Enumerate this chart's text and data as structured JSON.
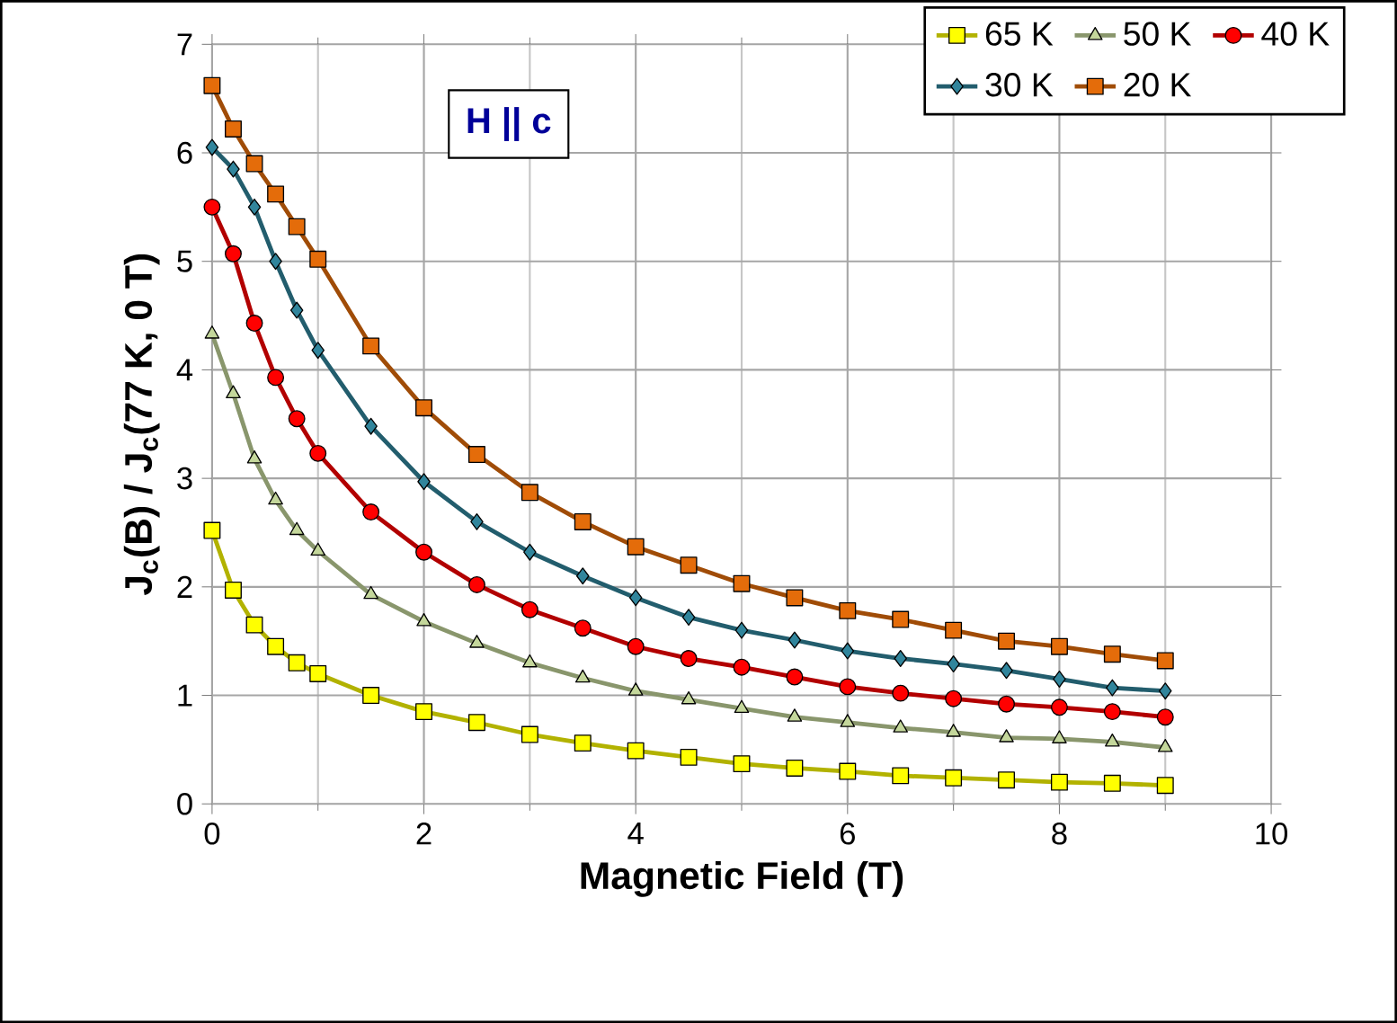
{
  "chart_data": {
    "type": "line",
    "xlabel": "Magnetic Field (T)",
    "ylabel": "J$_{c}$(B) / J$_{c}$(77 K, 0 T)",
    "annotations": [
      "H || c"
    ],
    "x": [
      0,
      0.2,
      0.4,
      0.6,
      0.8,
      1,
      1.5,
      2,
      2.5,
      3,
      3.5,
      4,
      4.5,
      5,
      5.5,
      6,
      6.5,
      7,
      7.5,
      8,
      8.5,
      9
    ],
    "series": [
      {
        "name": "65 K",
        "color": "#ffff00",
        "marker": "square",
        "values": [
          2.52,
          1.97,
          1.65,
          1.45,
          1.3,
          1.2,
          1.0,
          0.85,
          0.75,
          0.64,
          0.56,
          0.49,
          0.43,
          0.37,
          0.33,
          0.3,
          0.26,
          0.24,
          0.22,
          0.2,
          0.19,
          0.17
        ]
      },
      {
        "name": "50 K",
        "color": "#c4d79b",
        "marker": "triangle",
        "values": [
          4.33,
          3.78,
          3.18,
          2.8,
          2.52,
          2.33,
          1.93,
          1.68,
          1.48,
          1.3,
          1.16,
          1.04,
          0.96,
          0.88,
          0.8,
          0.75,
          0.7,
          0.66,
          0.61,
          0.6,
          0.57,
          0.52
        ]
      },
      {
        "name": "40 K",
        "color": "#ff0000",
        "marker": "circle",
        "values": [
          5.5,
          5.07,
          4.43,
          3.93,
          3.55,
          3.23,
          2.69,
          2.32,
          2.02,
          1.79,
          1.62,
          1.45,
          1.34,
          1.26,
          1.17,
          1.08,
          1.02,
          0.97,
          0.92,
          0.89,
          0.85,
          0.8
        ]
      },
      {
        "name": "30 K",
        "color": "#31859c",
        "marker": "diamond",
        "values": [
          6.05,
          5.85,
          5.5,
          5.0,
          4.55,
          4.18,
          3.48,
          2.97,
          2.6,
          2.32,
          2.1,
          1.9,
          1.72,
          1.6,
          1.51,
          1.41,
          1.34,
          1.29,
          1.23,
          1.15,
          1.07,
          1.04
        ]
      },
      {
        "name": "20 K",
        "color": "#e46c0a",
        "marker": "square",
        "values": [
          6.62,
          6.22,
          5.9,
          5.62,
          5.32,
          5.02,
          4.22,
          3.65,
          3.22,
          2.87,
          2.6,
          2.37,
          2.2,
          2.03,
          1.9,
          1.78,
          1.7,
          1.6,
          1.5,
          1.45,
          1.38,
          1.32
        ]
      }
    ],
    "xlim": [
      0,
      10
    ],
    "xticks": [
      0,
      2,
      4,
      6,
      8,
      10
    ],
    "ylim": [
      0,
      7
    ],
    "yticks": [
      0,
      1,
      2,
      3,
      4,
      5,
      6,
      7
    ],
    "grid": true,
    "legend": "top right",
    "line_style": "solid"
  }
}
